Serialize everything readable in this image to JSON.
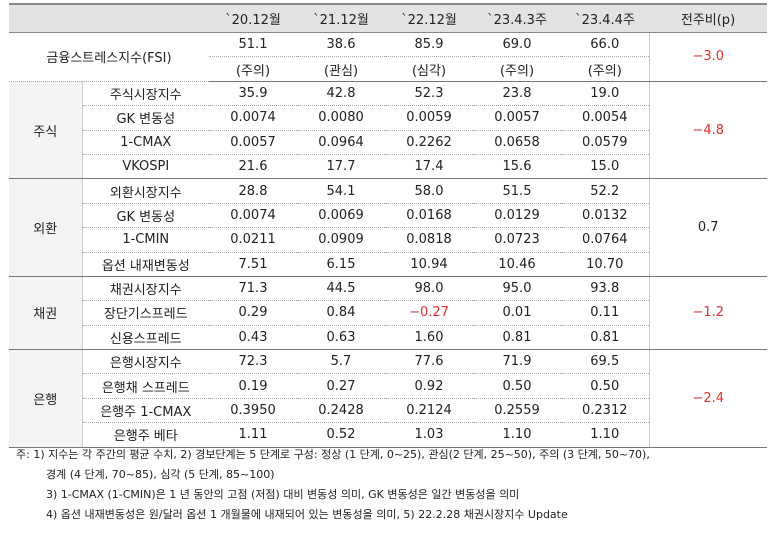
{
  "headers": [
    "`20.12월",
    "`21.12월",
    "`22.12월",
    "`23.4.3주",
    "`23.4.4주",
    "전주비(p)"
  ],
  "fsi": {
    "label": "금융스트레스지수(FSI)",
    "values": [
      "51.1",
      "38.6",
      "85.9",
      "69.0",
      "66.0"
    ],
    "states": [
      "(주의)",
      "(관심)",
      "(심각)",
      "(주의)",
      "(주의)"
    ],
    "change": "−3.0"
  },
  "groups": [
    {
      "name": "주식",
      "change": "−4.8",
      "rows": [
        {
          "label": "주식시장지수",
          "values": [
            "35.9",
            "42.8",
            "52.3",
            "23.8",
            "19.0"
          ]
        },
        {
          "label": "GK 변동성",
          "values": [
            "0.0074",
            "0.0080",
            "0.0059",
            "0.0057",
            "0.0054"
          ]
        },
        {
          "label": "1-CMAX",
          "values": [
            "0.0057",
            "0.0964",
            "0.2262",
            "0.0658",
            "0.0579"
          ]
        },
        {
          "label": "VKOSPI",
          "values": [
            "21.6",
            "17.7",
            "17.4",
            "15.6",
            "15.0"
          ]
        }
      ]
    },
    {
      "name": "외환",
      "change": "0.7",
      "rows": [
        {
          "label": "외환시장지수",
          "values": [
            "28.8",
            "54.1",
            "58.0",
            "51.5",
            "52.2"
          ]
        },
        {
          "label": "GK 변동성",
          "values": [
            "0.0074",
            "0.0069",
            "0.0168",
            "0.0129",
            "0.0132"
          ]
        },
        {
          "label": "1-CMIN",
          "values": [
            "0.0211",
            "0.0909",
            "0.0818",
            "0.0723",
            "0.0764"
          ]
        },
        {
          "label": "옵션 내재변동성",
          "values": [
            "7.51",
            "6.15",
            "10.94",
            "10.46",
            "10.70"
          ]
        }
      ]
    },
    {
      "name": "채권",
      "change": "−1.2",
      "rows": [
        {
          "label": "채권시장지수",
          "values": [
            "71.3",
            "44.5",
            "98.0",
            "95.0",
            "93.8"
          ]
        },
        {
          "label": "장단기스프레드",
          "values": [
            "0.29",
            "0.84",
            "−0.27",
            "0.01",
            "0.11"
          ]
        },
        {
          "label": "신용스프레드",
          "values": [
            "0.43",
            "0.63",
            "1.60",
            "0.81",
            "0.81"
          ]
        }
      ]
    },
    {
      "name": "은행",
      "change": "−2.4",
      "rows": [
        {
          "label": "은행시장지수",
          "values": [
            "72.3",
            "5.7",
            "77.6",
            "71.9",
            "69.5"
          ]
        },
        {
          "label": "은행채 스프레드",
          "values": [
            "0.19",
            "0.27",
            "0.92",
            "0.50",
            "0.50"
          ]
        },
        {
          "label": "은행주 1-CMAX",
          "values": [
            "0.3950",
            "0.2428",
            "0.2124",
            "0.2559",
            "0.2312"
          ]
        },
        {
          "label": "은행주 베타",
          "values": [
            "1.11",
            "0.52",
            "1.03",
            "1.10",
            "1.10"
          ]
        }
      ]
    }
  ],
  "notes": [
    "주: 1) 지수는 각 주간의 평균 수치, 2) 경보단계는 5 단계로 구성: 정상 (1 단계, 0~25), 관심(2 단계, 25~50), 주의 (3 단계, 50~70),",
    "경계 (4 단계, 70~85), 심각 (5 단계, 85~100)",
    "3) 1-CMAX (1-CMIN)은 1 년 동안의 고점 (저점) 대비 변동성 의미, GK 변동성은 일간 변동성을 의미",
    "4) 옵션 내재변동성은 원/달러 옵션 1 개월물에 내재되어 있는 변동성을 의미, 5) 22.2.28 채권시장지수 Update"
  ],
  "colors": {
    "negative": "#e0302f",
    "header_bg": "#e3e3e3"
  }
}
